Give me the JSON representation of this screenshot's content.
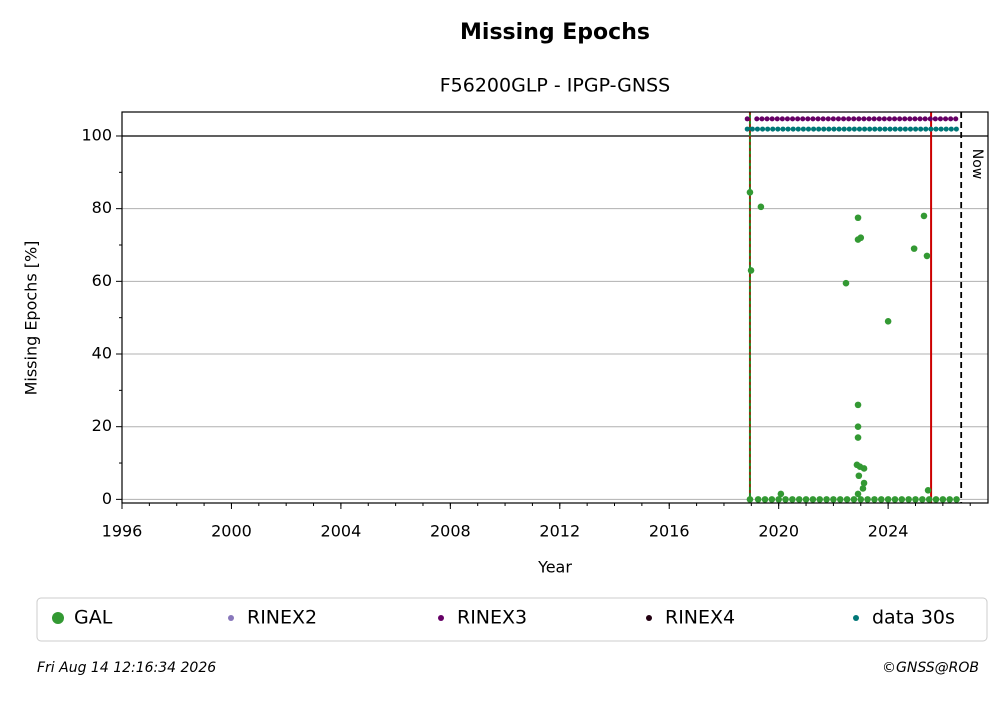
{
  "chart_data": {
    "type": "scatter",
    "title": "Missing Epochs",
    "subtitle": "F56200GLP - IPGP-GNSS",
    "x_label": "Year",
    "y_label": "Missing Epochs [%]",
    "xlim": [
      1996,
      2027.65
    ],
    "xticks": [
      1996,
      2000,
      2004,
      2008,
      2012,
      2016,
      2020,
      2024
    ],
    "ylim": [
      -1,
      106.6
    ],
    "yticks": [
      0,
      20,
      40,
      60,
      80,
      100
    ],
    "grid": true,
    "legend": "bottom",
    "start": 2018.95,
    "end": 2025.57,
    "now": 2026.67,
    "now_label": "Now",
    "series": [
      {
        "name": "GAL",
        "color": "#339933",
        "x": [
          2018.95,
          2018.99,
          2019.35,
          2020.08,
          2022.46,
          2022.9,
          2022.9,
          2023.0,
          2022.9,
          2022.9,
          2022.9,
          2022.86,
          2022.97,
          2023.12,
          2022.93,
          2023.12,
          2023.08,
          2022.9,
          2024.0,
          2024.95,
          2025.31,
          2025.42,
          2025.46,
          2018.95,
          2019.25,
          2019.5,
          2019.75,
          2020.0,
          2020.25,
          2020.5,
          2020.75,
          2021.0,
          2021.25,
          2021.5,
          2021.75,
          2022.0,
          2022.25,
          2022.5,
          2022.75,
          2023.0,
          2023.25,
          2023.5,
          2023.75,
          2024.0,
          2024.25,
          2024.5,
          2024.75,
          2025.0,
          2025.25,
          2025.5,
          2025.75,
          2026.0,
          2026.25,
          2026.5
        ],
        "values": [
          84.5,
          63,
          80.5,
          1.5,
          59.5,
          77.5,
          71.5,
          72,
          26,
          20,
          17,
          9.5,
          9,
          8.5,
          6.5,
          4.5,
          3,
          1.5,
          49,
          69,
          78,
          67,
          2.5,
          0,
          0,
          0,
          0,
          0,
          0,
          0,
          0,
          0,
          0,
          0,
          0,
          0,
          0,
          0,
          0,
          0,
          0,
          0,
          0,
          0,
          0,
          0,
          0,
          0,
          0,
          0,
          0,
          0,
          0,
          0
        ]
      },
      {
        "name": "RINEX2",
        "color": "#8877bb"
      },
      {
        "name": "RINEX3",
        "color": "#660066",
        "y": 104.7,
        "ranges": [
          [
            2018.85,
            2018.95
          ],
          [
            2019.2,
            2026.6
          ]
        ]
      },
      {
        "name": "RINEX4",
        "color": "#220011"
      },
      {
        "name": "data 30s",
        "color": "#007777",
        "y": 101.9,
        "ranges": [
          [
            2018.85,
            2026.6
          ]
        ]
      }
    ],
    "timestamp": "Fri Aug 14 12:16:34 2026",
    "credit": "©GNSS@ROB"
  }
}
